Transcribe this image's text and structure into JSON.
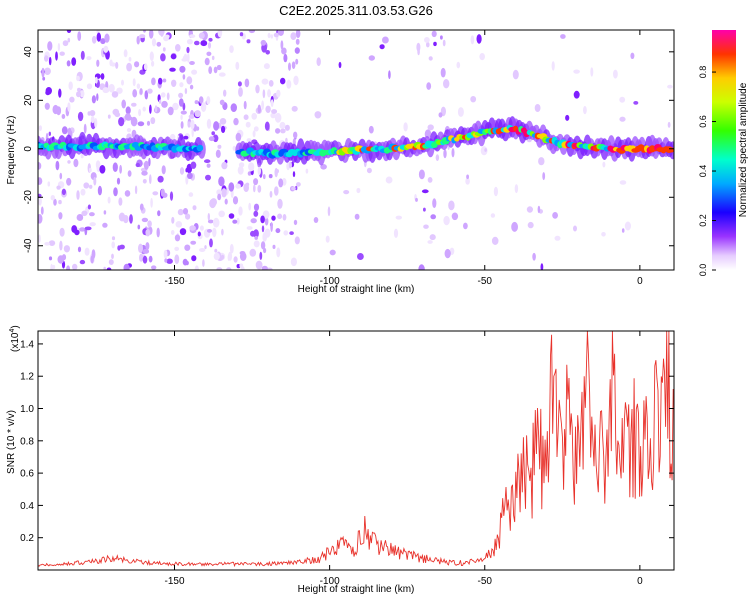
{
  "figure_title": "C2E2.2025.311.03.53.G26",
  "colors": {
    "line": "#e8322b",
    "frame": "#000000"
  },
  "chart_data": [
    {
      "type": "heatmap",
      "title": "C2E2.2025.311.03.53.G26",
      "xlabel": "Height of straight line (km)",
      "ylabel": "Frequency (Hz)",
      "xlim": [
        -194,
        11
      ],
      "ylim": [
        -50,
        49
      ],
      "x_ticks": [
        -150,
        -100,
        -50,
        0
      ],
      "x_tick_labels": [
        "-150",
        "-100",
        "-50",
        "0"
      ],
      "y_ticks": [
        -40,
        -20,
        0,
        20,
        40
      ],
      "y_tick_labels": [
        "-40",
        "-20",
        "0",
        "20",
        "40"
      ],
      "ridge_frequency": {
        "x": [
          -194,
          -180,
          -160,
          -140,
          -120,
          -100,
          -80,
          -70,
          -60,
          -50,
          -45,
          -40,
          -35,
          -30,
          -25,
          -20,
          -10,
          0,
          11
        ],
        "y": [
          1,
          1,
          1,
          0,
          -2,
          -1,
          0,
          1,
          4,
          7,
          8,
          8,
          6,
          4,
          2,
          1,
          0,
          0,
          0
        ]
      },
      "colorbar": {
        "label": "Normalized spectral amplitude",
        "range": [
          0,
          0.97
        ],
        "ticks": [
          0,
          0.2,
          0.4,
          0.6,
          0.8
        ],
        "tick_labels": [
          "0.0",
          "0.2",
          "0.4",
          "0.6",
          "0.8"
        ]
      }
    },
    {
      "type": "line",
      "xlabel": "Height of straight line (km)",
      "ylabel": "SNR (10 * v/v)",
      "scale_note": "(x10",
      "scale_exp": "4",
      "scale_close": ")",
      "xlim": [
        -194,
        11
      ],
      "ylim": [
        0,
        1.48
      ],
      "x_ticks": [
        -150,
        -100,
        -50,
        0
      ],
      "x_tick_labels": [
        "-150",
        "-100",
        "-50",
        "0"
      ],
      "y_ticks": [
        0.2,
        0.4,
        0.6,
        0.8,
        1.0,
        1.2,
        1.4
      ],
      "y_tick_labels": [
        "0.2",
        "0.4",
        "0.6",
        "0.8",
        "1.0",
        "1.2",
        "1.4"
      ],
      "series": [
        {
          "name": "SNR",
          "x": [
            -194,
            -185,
            -175,
            -170,
            -160,
            -150,
            -140,
            -130,
            -120,
            -110,
            -104,
            -100,
            -96,
            -92,
            -89,
            -87,
            -84,
            -80,
            -75,
            -70,
            -65,
            -60,
            -55,
            -50,
            -47,
            -45,
            -43,
            -41,
            -39,
            -37,
            -35,
            -33,
            -31,
            -29,
            -27,
            -25,
            -23,
            -21,
            -19,
            -17,
            -15,
            -13,
            -11,
            -9,
            -7,
            -5,
            -3,
            -1,
            1,
            3,
            5,
            7,
            9,
            11
          ],
          "y": [
            0.03,
            0.04,
            0.06,
            0.08,
            0.05,
            0.04,
            0.04,
            0.04,
            0.04,
            0.05,
            0.07,
            0.12,
            0.18,
            0.14,
            0.3,
            0.2,
            0.16,
            0.14,
            0.1,
            0.08,
            0.06,
            0.05,
            0.05,
            0.07,
            0.15,
            0.28,
            0.42,
            0.5,
            0.58,
            0.7,
            0.65,
            0.8,
            0.72,
            0.95,
            1.48,
            0.85,
            1.1,
            0.7,
            0.9,
            1.15,
            0.85,
            1.0,
            0.8,
            1.35,
            0.95,
            0.75,
            1.0,
            0.9,
            0.95,
            0.82,
            1.0,
            0.95,
            1.28,
            0.9
          ]
        }
      ]
    }
  ]
}
